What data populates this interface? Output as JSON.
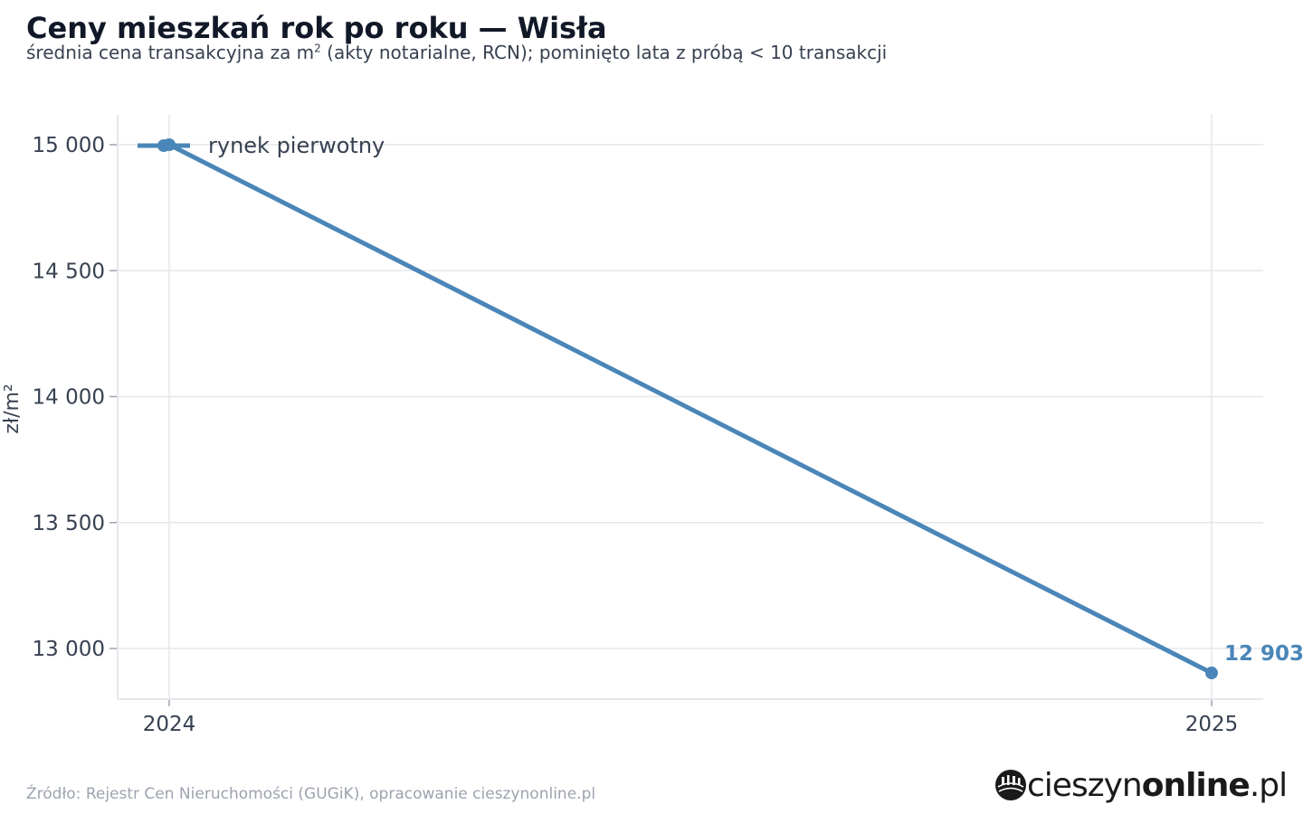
{
  "header": {
    "title": "Ceny mieszkań rok po roku — Wisła",
    "subtitle_before_sup": "średnia cena transakcyjna za m",
    "subtitle_sup": "2",
    "subtitle_after_sup": " (akty notarialne, RCN); pominięto lata z próbą < 10 transakcji"
  },
  "footer": {
    "source": "Źródło: Rejestr Cen Nieruchomości (GUGiK), opracowanie cieszynonline.pl",
    "logo_name": "cieszyn",
    "logo_bold": "online",
    "logo_tld": ".pl",
    "logo_icon": "globe-emblem-icon"
  },
  "colors": {
    "series": "#4a86b8",
    "grid": "#e5e7eb",
    "axis": "#e5e7eb",
    "tick_text": "#374151"
  },
  "chart_data": {
    "type": "line",
    "title": "Ceny mieszkań rok po roku — Wisła",
    "ylabel": "zł/m²",
    "xlabel": "",
    "x": [
      2024,
      2025
    ],
    "x_tick_labels": [
      "2024",
      "2025"
    ],
    "ylim": [
      12800,
      15120
    ],
    "y_ticks": [
      13000,
      13500,
      14000,
      14500,
      15000
    ],
    "y_tick_labels": [
      "13 000",
      "13 500",
      "14 000",
      "14 500",
      "15 000"
    ],
    "series": [
      {
        "name": "rynek pierwotny",
        "values": [
          15000,
          12903
        ],
        "end_label": "12 903"
      }
    ],
    "legend": "top-left",
    "grid": true
  }
}
